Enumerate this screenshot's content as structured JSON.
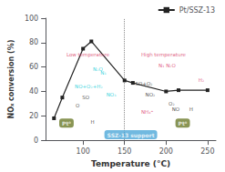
{
  "chart_data": {
    "type": "line",
    "xlabel": "Temperature (°C)",
    "ylabel": "NOₓ conversion (%)",
    "xlim": [
      55,
      260
    ],
    "ylim": [
      0,
      100
    ],
    "xticks": [
      100,
      150,
      200,
      250
    ],
    "yticks": [
      0,
      20,
      40,
      60,
      80,
      100
    ],
    "grid": false,
    "legend": "upper right",
    "x": [
      65,
      75,
      100,
      110,
      150,
      160,
      200,
      215,
      250
    ],
    "series": [
      {
        "name": "Pt/SSZ-13",
        "color": "#222222",
        "marker": "square",
        "values": [
          18,
          35,
          75,
          81,
          49,
          47,
          40,
          41,
          41
        ]
      }
    ],
    "reference_lines": [
      {
        "x": 150,
        "color": "#888888",
        "line_style": "dotted"
      }
    ],
    "annotations": [
      {
        "text": "SSZ-13 support",
        "x": 157.5,
        "y": 4.5,
        "color": "#4da8d8",
        "box": true
      },
      {
        "text": "Pt⁰",
        "x": 80,
        "y": 14,
        "color": "#6b7a2a",
        "box": true
      },
      {
        "text": "Pt⁰",
        "x": 220,
        "y": 14,
        "color": "#6b7a2a",
        "box": true
      },
      {
        "text": "NO+O₂+H₂",
        "x": 90,
        "y": 41.5,
        "color": "#00c8d4"
      },
      {
        "text": "SO",
        "x": 99,
        "y": 33,
        "color": "#222222"
      },
      {
        "text": "O",
        "x": 91,
        "y": 26,
        "color": "#222222"
      },
      {
        "text": "H",
        "x": 109,
        "y": 13,
        "color": "#222222"
      },
      {
        "text": "NO₃",
        "x": 128,
        "y": 35,
        "color": "#00c8d4"
      },
      {
        "text": "N₂O",
        "x": 112,
        "y": 56,
        "color": "#00c8d4"
      },
      {
        "text": "N₁",
        "x": 121,
        "y": 53,
        "color": "#00c8d4"
      },
      {
        "text": "SO+O₂",
        "x": 163,
        "y": 44,
        "color": "#222222"
      },
      {
        "text": "NO₂",
        "x": 175,
        "y": 35,
        "color": "#222222"
      },
      {
        "text": "NH₄⁺",
        "x": 170,
        "y": 21,
        "color": "#d63060"
      },
      {
        "text": "O₂",
        "x": 203,
        "y": 28,
        "color": "#222222"
      },
      {
        "text": "NO",
        "x": 207,
        "y": 23,
        "color": "#222222"
      },
      {
        "text": "H",
        "x": 228,
        "y": 23,
        "color": "#222222"
      },
      {
        "text": "N₁ N₂O",
        "x": 191,
        "y": 59,
        "color": "#d63060"
      },
      {
        "text": "H₂",
        "x": 239,
        "y": 47,
        "color": "#d63060"
      },
      {
        "text": "Low temperature",
        "x": 80,
        "y": 68,
        "color": "#d63060"
      },
      {
        "text": "High temperature",
        "x": 170,
        "y": 68,
        "color": "#d63060"
      }
    ]
  }
}
